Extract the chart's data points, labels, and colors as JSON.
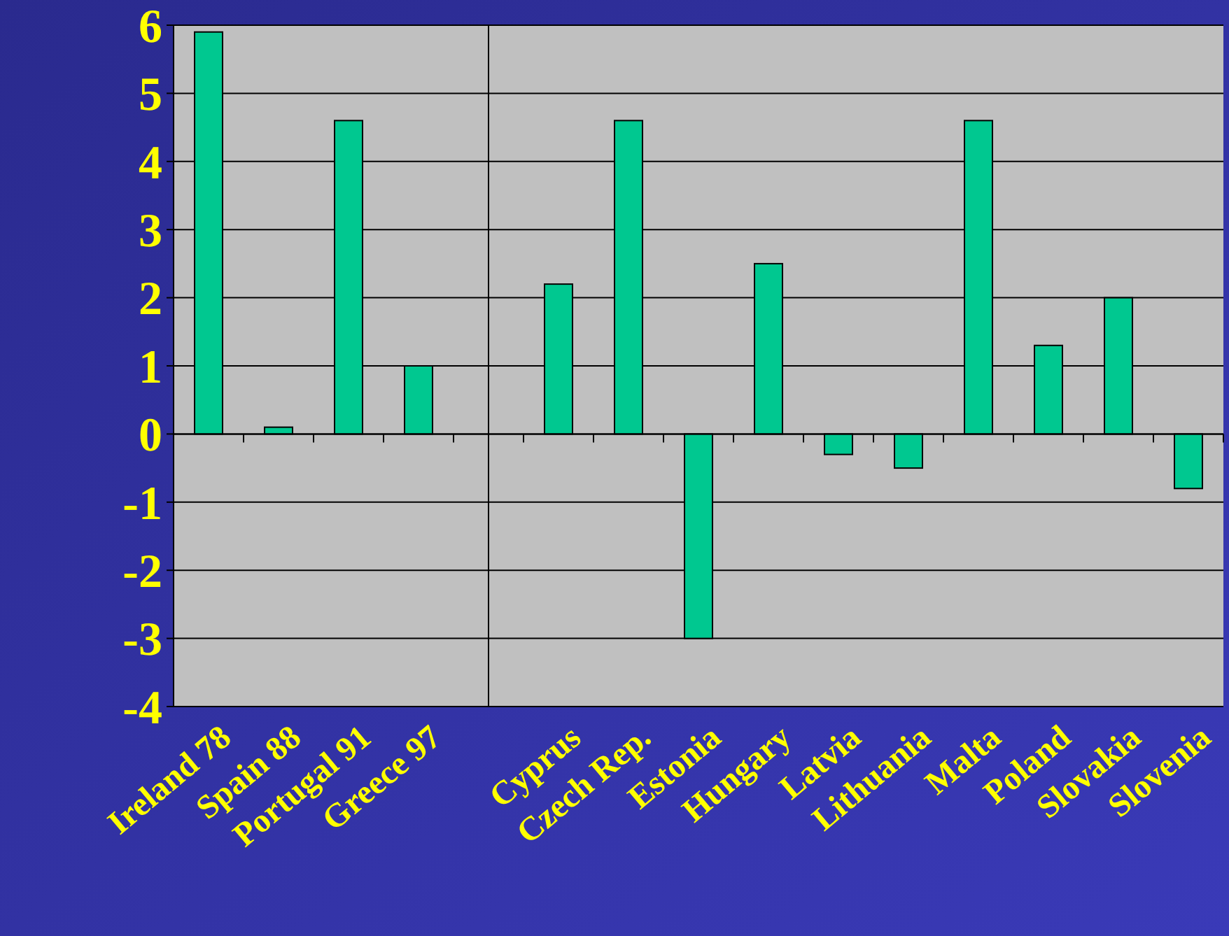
{
  "chart_data": {
    "type": "bar",
    "categories": [
      "Ireland 78",
      "Spain 88",
      "Portugal 91",
      "Greece 97",
      null,
      "Cyprus",
      "Czech Rep.",
      "Estonia",
      "Hungary",
      "Latvia",
      "Lithuania",
      "Malta",
      "Poland",
      "Slovakia",
      "Slovenia"
    ],
    "values": [
      5.9,
      0.1,
      4.6,
      1.0,
      null,
      2.2,
      4.6,
      -3.0,
      2.5,
      -0.3,
      -0.5,
      4.6,
      1.3,
      2.0,
      -0.8
    ],
    "color": "#00c890",
    "ylim": [
      -4,
      6
    ],
    "yticks": [
      -4,
      -3,
      -2,
      -1,
      0,
      1,
      2,
      3,
      4,
      5,
      6
    ],
    "grid": "y"
  }
}
